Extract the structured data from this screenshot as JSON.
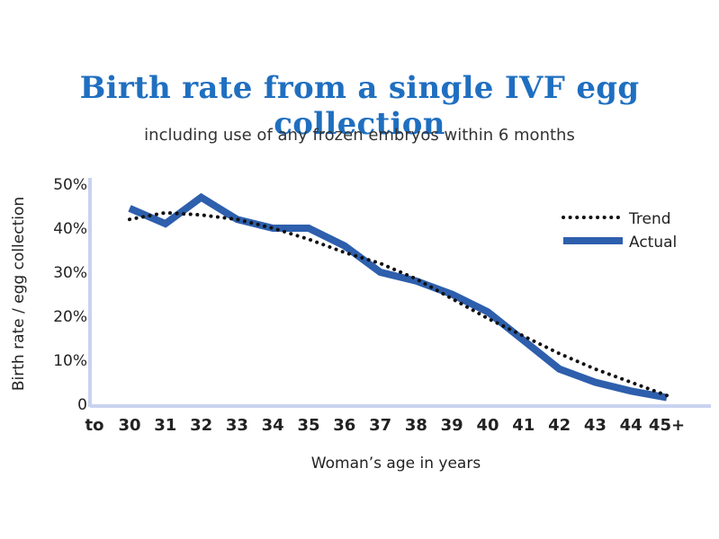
{
  "title": "Birth rate from a single IVF egg collection",
  "subtitle": "including use of any frozen embryos within 6 months",
  "chart_data": {
    "type": "line",
    "title": "Birth rate from a single IVF egg collection",
    "subtitle": "including use of any frozen embryos within 6 months",
    "xlabel": "Woman’s age in years",
    "ylabel": "Birth rate / egg collection",
    "categories": [
      "30",
      "31",
      "32",
      "33",
      "34",
      "35",
      "36",
      "37",
      "38",
      "39",
      "40",
      "41",
      "42",
      "43",
      "44",
      "45+"
    ],
    "x_prefix_label": "to",
    "y_ticks": [
      0,
      10,
      20,
      30,
      40,
      50
    ],
    "y_tick_labels": [
      "0",
      "10%",
      "20%",
      "30%",
      "40%",
      "50%"
    ],
    "ylim": [
      0,
      50
    ],
    "series": [
      {
        "name": "Trend",
        "style": "dotted",
        "color": "#111111",
        "values": [
          42,
          43.5,
          43,
          42,
          40,
          37.5,
          34.5,
          32,
          28.5,
          24,
          19.5,
          15.5,
          11.5,
          8,
          5,
          2
        ]
      },
      {
        "name": "Actual",
        "style": "solid",
        "color": "#2e5fad",
        "values": [
          44.5,
          41,
          47,
          42,
          40,
          40,
          36,
          30,
          28,
          25,
          21,
          14.5,
          8,
          5,
          3,
          1.5
        ]
      }
    ],
    "legend": [
      "Trend",
      "Actual"
    ],
    "legend_position": "top-right"
  }
}
